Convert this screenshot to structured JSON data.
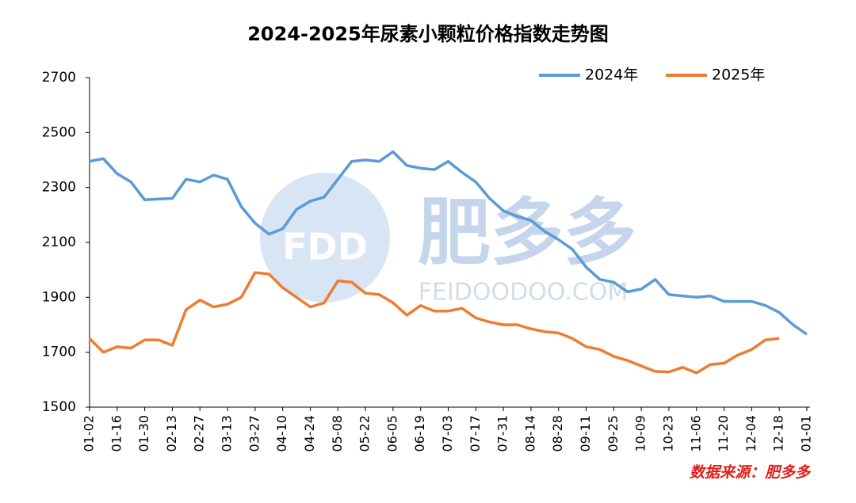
{
  "chart_data": {
    "type": "line",
    "title": "2024-2025年尿素小颗粒价格指数走势图",
    "categories": [
      "01-02",
      null,
      "01-16",
      null,
      "01-30",
      null,
      "02-13",
      null,
      "02-27",
      null,
      "03-13",
      null,
      "03-27",
      null,
      "04-10",
      null,
      "04-24",
      null,
      "05-08",
      null,
      "05-22",
      null,
      "06-05",
      null,
      "06-19",
      null,
      "07-03",
      null,
      "07-17",
      null,
      "07-31",
      null,
      "08-14",
      null,
      "08-28",
      null,
      "09-11",
      null,
      "09-25",
      null,
      "10-09",
      null,
      "10-23",
      null,
      "11-06",
      null,
      "11-20",
      null,
      "12-04",
      null,
      "12-18",
      null,
      "01-01"
    ],
    "series": [
      {
        "name": "2024年",
        "color": "#5b9bd5",
        "values": [
          2395,
          2405,
          2350,
          2320,
          2255,
          2258,
          2260,
          2330,
          2320,
          2345,
          2330,
          2230,
          2170,
          2130,
          2150,
          2220,
          2250,
          2265,
          2330,
          2395,
          2400,
          2395,
          2430,
          2380,
          2370,
          2365,
          2395,
          2355,
          2320,
          2260,
          2215,
          2195,
          2180,
          2140,
          2110,
          2075,
          2010,
          1965,
          1955,
          1920,
          1930,
          1965,
          1910,
          1905,
          1900,
          1905,
          1885,
          1885,
          1885,
          1870,
          1845,
          1800,
          1765
        ]
      },
      {
        "name": "2025年",
        "color": "#ed7d31",
        "values": [
          1750,
          1700,
          1720,
          1715,
          1745,
          1745,
          1725,
          1855,
          1890,
          1865,
          1875,
          1900,
          1990,
          1985,
          1935,
          1900,
          1865,
          1880,
          1960,
          1955,
          1915,
          1910,
          1880,
          1835,
          1870,
          1850,
          1850,
          1860,
          1825,
          1810,
          1800,
          1800,
          1785,
          1775,
          1770,
          1750,
          1720,
          1710,
          1685,
          1670,
          1650,
          1630,
          1628,
          1645,
          1625,
          1655,
          1660,
          1690,
          1710,
          1745,
          1750,
          null,
          null
        ]
      }
    ],
    "ylim": [
      1500,
      2700
    ],
    "yticks": [
      1500,
      1700,
      1900,
      2100,
      2300,
      2500,
      2700
    ],
    "grid": false,
    "legend": "top-right",
    "source": "数据来源：肥多多"
  },
  "watermark": {
    "logo": "FDD",
    "name": "肥多多",
    "url": "FEIDOODOO.COM"
  }
}
